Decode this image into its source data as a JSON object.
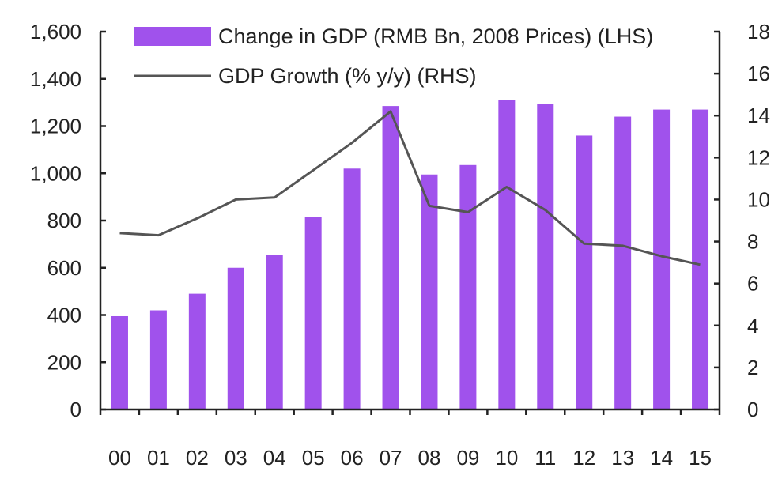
{
  "chart_data": {
    "type": "bar",
    "categories": [
      "00",
      "01",
      "02",
      "03",
      "04",
      "05",
      "06",
      "07",
      "08",
      "09",
      "10",
      "11",
      "12",
      "13",
      "14",
      "15"
    ],
    "series": [
      {
        "name": "Change in GDP (RMB Bn, 2008 Prices) (LHS)",
        "type": "bar",
        "axis": "left",
        "color": "#a052ec",
        "values": [
          395,
          420,
          490,
          600,
          655,
          815,
          1020,
          1285,
          995,
          1035,
          1310,
          1295,
          1160,
          1240,
          1270,
          1270
        ]
      },
      {
        "name": "GDP Growth (% y/y) (RHS)",
        "type": "line",
        "axis": "right",
        "color": "#555555",
        "values": [
          8.4,
          8.3,
          9.1,
          10.0,
          10.1,
          11.4,
          12.7,
          14.2,
          9.7,
          9.4,
          10.6,
          9.5,
          7.9,
          7.8,
          7.3,
          6.9
        ]
      }
    ],
    "ylim_left": [
      0,
      1600
    ],
    "ylim_right": [
      0,
      18
    ],
    "yticks_left": [
      "0",
      "200",
      "400",
      "600",
      "800",
      "1,000",
      "1,200",
      "1,400",
      "1,600"
    ],
    "yticks_right": [
      "0",
      "2",
      "4",
      "6",
      "8",
      "10",
      "12",
      "14",
      "16",
      "18"
    ],
    "legend_position": "top-left",
    "grid": false
  }
}
